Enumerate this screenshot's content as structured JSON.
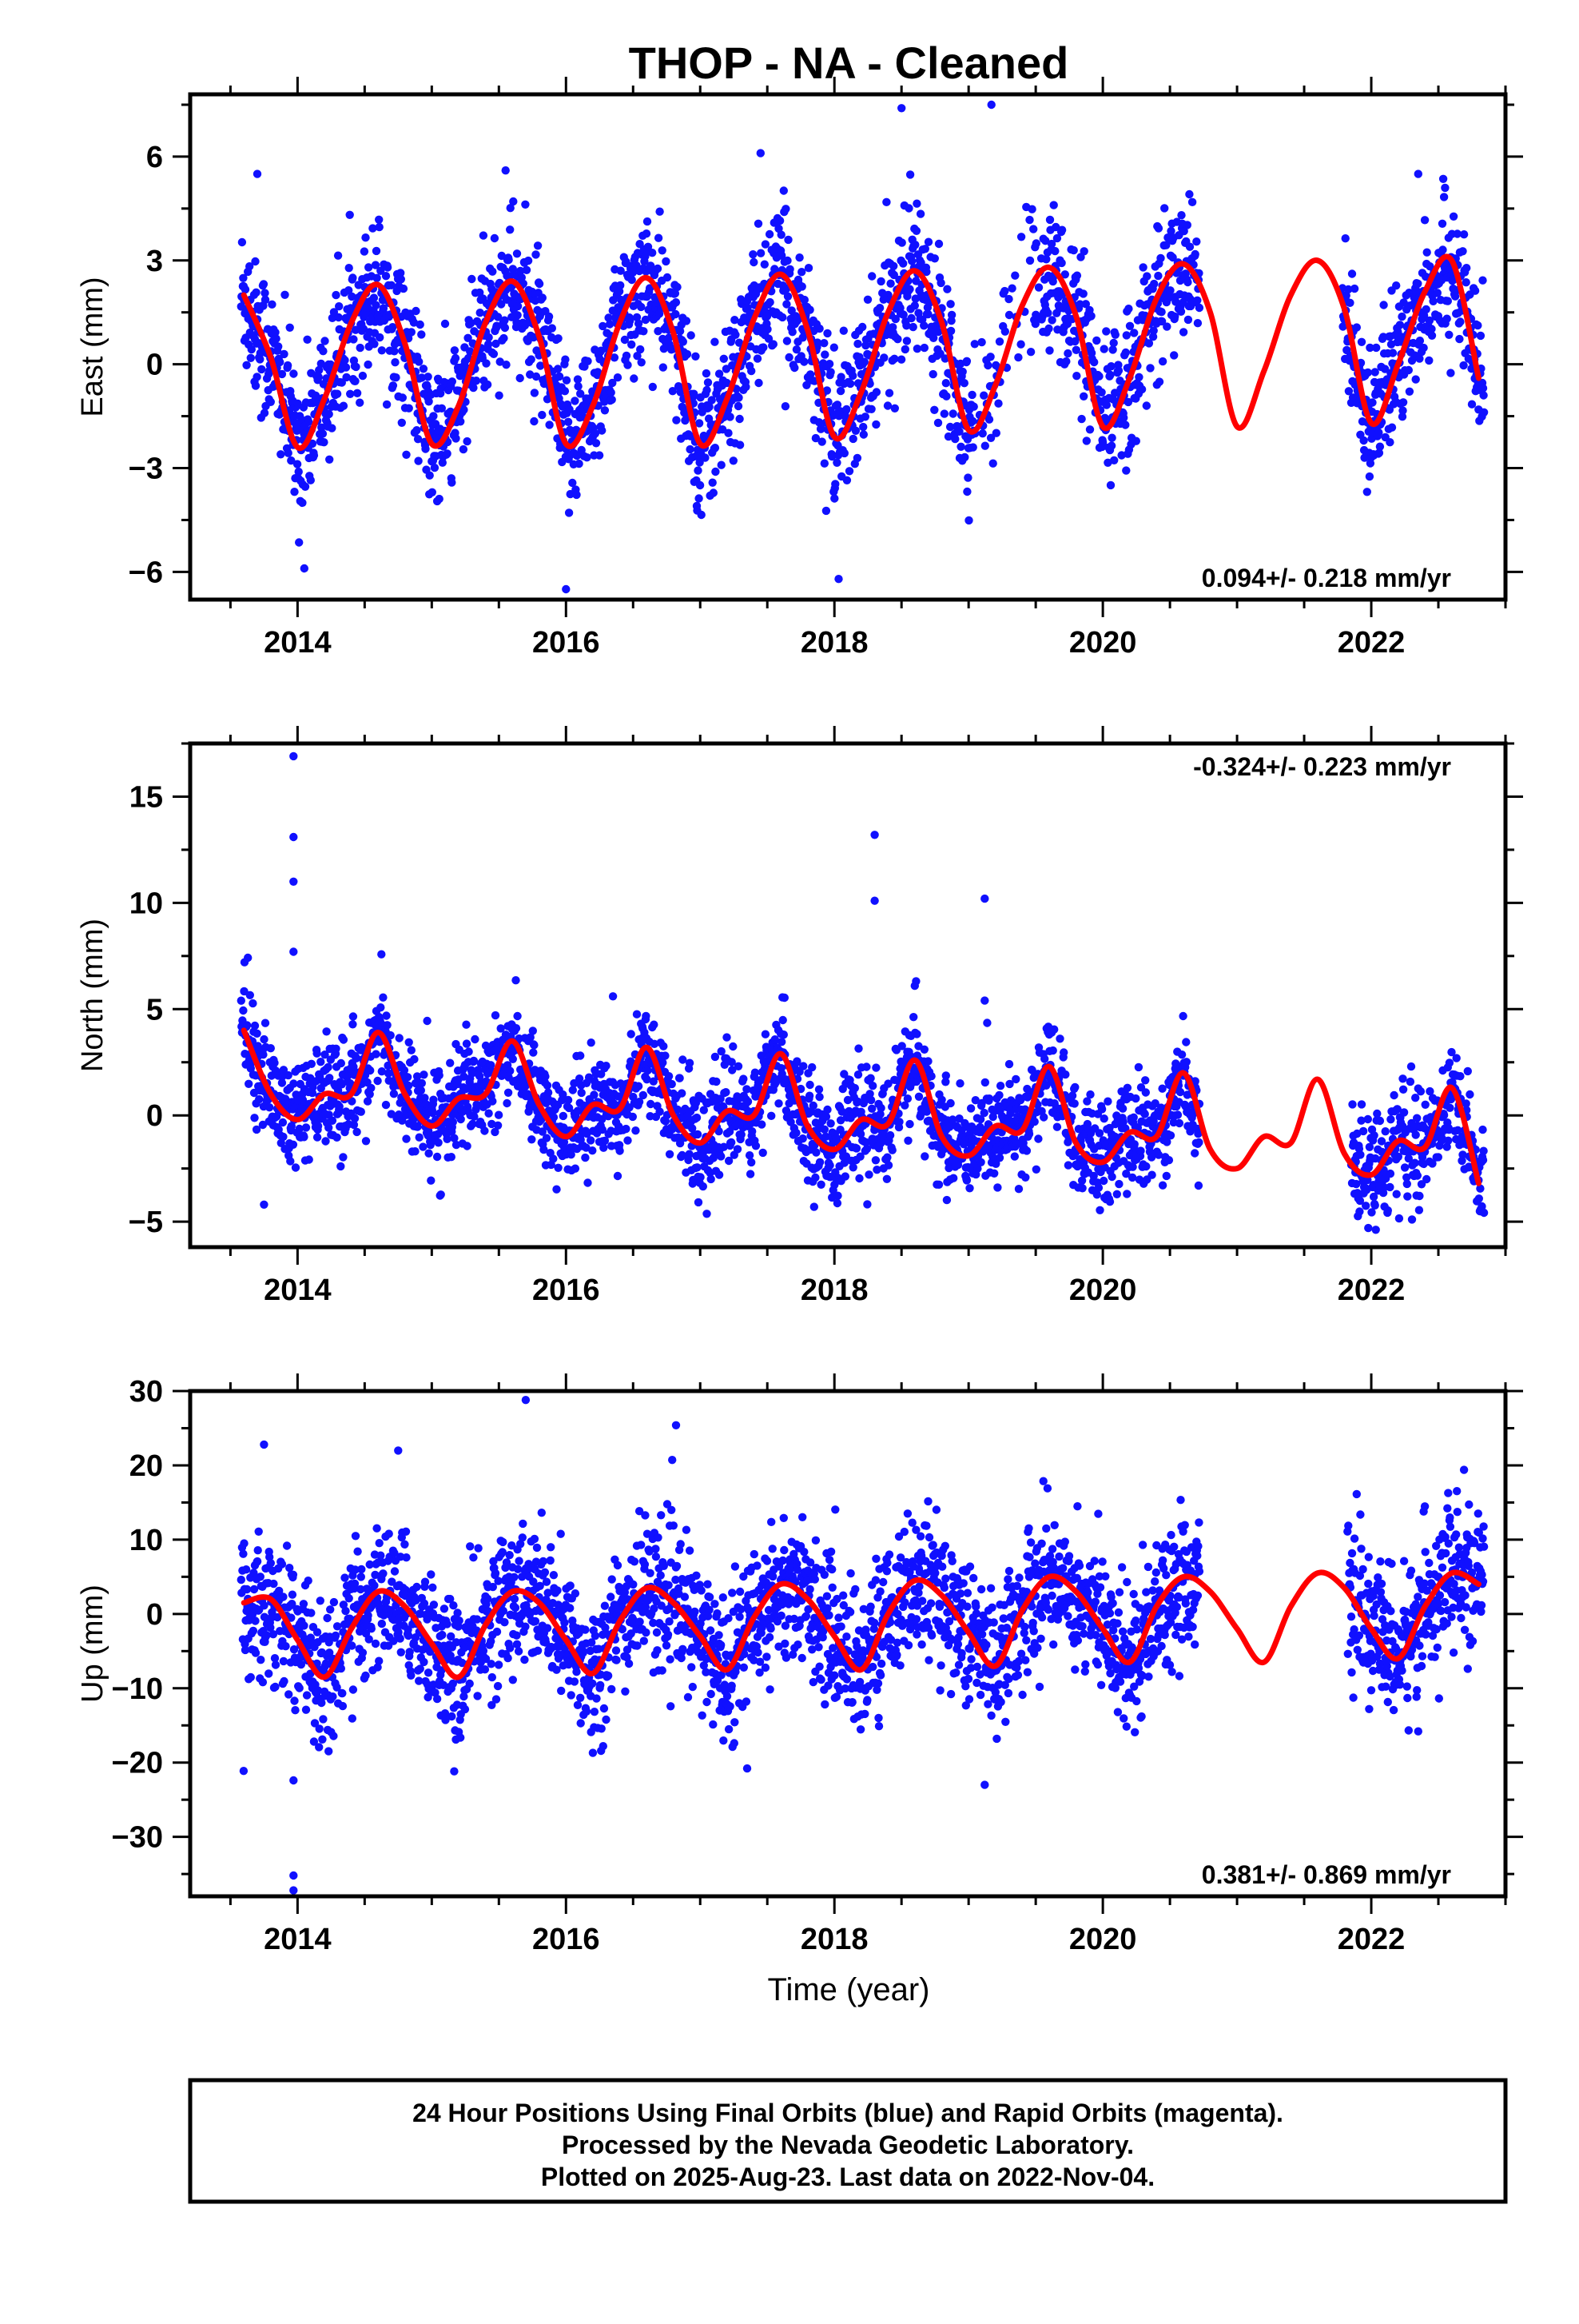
{
  "title": "THOP  - NA - Cleaned",
  "xlabel": "Time (year)",
  "footer": {
    "lines": [
      "24 Hour Positions Using Final Orbits (blue) and Rapid Orbits (magenta).",
      "Processed by the Nevada Geodetic Laboratory.",
      "Plotted on 2025-Aug-23. Last data on 2022-Nov-04."
    ]
  },
  "colors": {
    "final_orbits": "#1010ff",
    "fit": "#ff0000"
  },
  "chart_data": [
    {
      "type": "scatter",
      "ylabel": "East (mm)",
      "xlim": [
        2013.2,
        2023.0
      ],
      "ylim": [
        -6.8,
        7.8
      ],
      "xticks": [
        2014,
        2016,
        2018,
        2020,
        2022
      ],
      "yticks": [
        -6,
        -3,
        0,
        3,
        6
      ],
      "rate_text": "0.094+/- 0.218 mm/yr",
      "rate_position": "bottom-right",
      "gaps": [
        [
          2020.72,
          2021.78
        ]
      ],
      "outliers": [
        [
          2013.7,
          5.5
        ],
        [
          2014.05,
          -5.9
        ],
        [
          2016.0,
          -6.5
        ],
        [
          2018.5,
          7.4
        ],
        [
          2019.17,
          7.5
        ],
        [
          2017.45,
          6.1
        ],
        [
          2015.55,
          5.6
        ],
        [
          2022.35,
          5.5
        ],
        [
          2022.55,
          5.1
        ]
      ],
      "series": [
        {
          "name": "",
          "style": "line",
          "x": [
            2013.6,
            2013.8,
            2014.0,
            2014.2,
            2014.4,
            2014.6,
            2014.8,
            2015.0,
            2015.2,
            2015.4,
            2015.6,
            2015.8,
            2016.0,
            2016.2,
            2016.4,
            2016.6,
            2016.8,
            2017.0,
            2017.2,
            2017.4,
            2017.6,
            2017.8,
            2018.0,
            2018.2,
            2018.4,
            2018.6,
            2018.8,
            2019.0,
            2019.2,
            2019.4,
            2019.6,
            2019.8,
            2020.0,
            2020.2,
            2020.4,
            2020.6,
            2020.8,
            2021.0,
            2021.2,
            2021.4,
            2021.6,
            2021.8,
            2022.0,
            2022.2,
            2022.4,
            2022.6,
            2022.8
          ],
          "values": [
            2.0,
            0.2,
            -2.4,
            -1.0,
            1.2,
            2.3,
            0.6,
            -2.3,
            -1.2,
            1.2,
            2.4,
            0.8,
            -2.3,
            -1.2,
            1.2,
            2.5,
            0.9,
            -2.3,
            -1.0,
            1.3,
            2.6,
            1.0,
            -2.1,
            -0.8,
            1.5,
            2.7,
            1.2,
            -1.9,
            -0.6,
            1.7,
            2.8,
            1.4,
            -1.8,
            -0.4,
            1.9,
            2.9,
            1.5,
            -1.8,
            -0.2,
            2.0,
            3.0,
            1.6,
            -1.7,
            0.0,
            2.1,
            3.0,
            -0.4
          ]
        }
      ]
    },
    {
      "type": "scatter",
      "ylabel": "North (mm)",
      "xlim": [
        2013.2,
        2023.0
      ],
      "ylim": [
        -6.2,
        17.5
      ],
      "xticks": [
        2014,
        2016,
        2018,
        2020,
        2022
      ],
      "yticks": [
        -5,
        0,
        5,
        10,
        15
      ],
      "rate_text": "-0.324+/- 0.223 mm/yr",
      "rate_position": "top-right",
      "gaps": [
        [
          2020.72,
          2021.85
        ]
      ],
      "outliers": [
        [
          2013.97,
          16.9
        ],
        [
          2013.97,
          13.1
        ],
        [
          2013.97,
          11.0
        ],
        [
          2013.97,
          7.7
        ],
        [
          2018.3,
          13.2
        ],
        [
          2018.3,
          10.1
        ],
        [
          2019.12,
          10.2
        ],
        [
          2019.12,
          5.4
        ],
        [
          2016.35,
          5.6
        ],
        [
          2013.75,
          -4.2
        ]
      ],
      "series": [
        {
          "name": "",
          "style": "line",
          "x": [
            2013.6,
            2013.8,
            2014.0,
            2014.2,
            2014.4,
            2014.6,
            2014.8,
            2015.0,
            2015.2,
            2015.4,
            2015.6,
            2015.8,
            2016.0,
            2016.2,
            2016.4,
            2016.6,
            2016.8,
            2017.0,
            2017.2,
            2017.4,
            2017.6,
            2017.8,
            2018.0,
            2018.2,
            2018.4,
            2018.6,
            2018.8,
            2019.0,
            2019.2,
            2019.4,
            2019.6,
            2019.8,
            2020.0,
            2020.2,
            2020.4,
            2020.6,
            2020.8,
            2021.0,
            2021.2,
            2021.4,
            2021.6,
            2021.8,
            2022.0,
            2022.2,
            2022.4,
            2022.6,
            2022.8
          ],
          "values": [
            4.0,
            1.0,
            -0.2,
            1.0,
            1.0,
            3.9,
            1.0,
            -0.5,
            0.8,
            1.0,
            3.5,
            0.5,
            -1.0,
            0.5,
            0.3,
            3.2,
            0.0,
            -1.3,
            0.2,
            0.0,
            2.9,
            -0.5,
            -1.6,
            -0.2,
            -0.4,
            2.6,
            -1.0,
            -1.9,
            -0.5,
            -0.7,
            2.3,
            -1.3,
            -2.2,
            -0.8,
            -1.0,
            2.0,
            -1.6,
            -2.5,
            -1.0,
            -1.3,
            1.7,
            -1.8,
            -2.8,
            -1.2,
            -1.5,
            1.3,
            -3.2
          ]
        }
      ]
    },
    {
      "type": "scatter",
      "ylabel": "Up (mm)",
      "xlim": [
        2013.2,
        2023.0
      ],
      "ylim": [
        -38,
        30
      ],
      "xticks": [
        2014,
        2016,
        2018,
        2020,
        2022
      ],
      "yticks": [
        -30,
        -20,
        -10,
        0,
        10,
        20,
        30
      ],
      "rate_text": "0.381+/- 0.869 mm/yr",
      "rate_position": "bottom-right",
      "gaps": [
        [
          2020.72,
          2021.82
        ]
      ],
      "outliers": [
        [
          2013.97,
          -22.4
        ],
        [
          2013.97,
          -35.2
        ],
        [
          2013.97,
          -37.2
        ],
        [
          2015.7,
          28.8
        ],
        [
          2016.82,
          25.4
        ],
        [
          2013.75,
          22.8
        ],
        [
          2014.75,
          22.0
        ],
        [
          2019.12,
          -23.0
        ],
        [
          2017.35,
          -20.8
        ],
        [
          2016.2,
          -18.7
        ],
        [
          2022.35,
          -15.8
        ]
      ],
      "series": [
        {
          "name": "",
          "style": "line",
          "x": [
            2013.6,
            2013.8,
            2014.0,
            2014.2,
            2014.4,
            2014.6,
            2014.8,
            2015.0,
            2015.2,
            2015.4,
            2015.6,
            2015.8,
            2016.0,
            2016.2,
            2016.4,
            2016.6,
            2016.8,
            2017.0,
            2017.2,
            2017.4,
            2017.6,
            2017.8,
            2018.0,
            2018.2,
            2018.4,
            2018.6,
            2018.8,
            2019.0,
            2019.2,
            2019.4,
            2019.6,
            2019.8,
            2020.0,
            2020.2,
            2020.4,
            2020.6,
            2020.8,
            2021.0,
            2021.2,
            2021.4,
            2021.6,
            2021.8,
            2022.0,
            2022.2,
            2022.4,
            2022.6,
            2022.8
          ],
          "values": [
            1.5,
            2.0,
            -3.5,
            -8.5,
            -2.0,
            3.0,
            1.0,
            -4.0,
            -8.5,
            -1.5,
            3.0,
            1.5,
            -3.5,
            -8.0,
            -1.0,
            3.5,
            1.5,
            -3.0,
            -7.5,
            -0.5,
            4.0,
            2.0,
            -3.0,
            -7.5,
            0.0,
            4.5,
            2.5,
            -2.5,
            -7.0,
            0.5,
            5.0,
            3.0,
            -2.0,
            -6.5,
            1.0,
            5.0,
            3.0,
            -2.0,
            -6.5,
            1.0,
            5.5,
            3.5,
            -2.0,
            -6.0,
            1.0,
            5.5,
            4.0
          ]
        }
      ]
    }
  ]
}
